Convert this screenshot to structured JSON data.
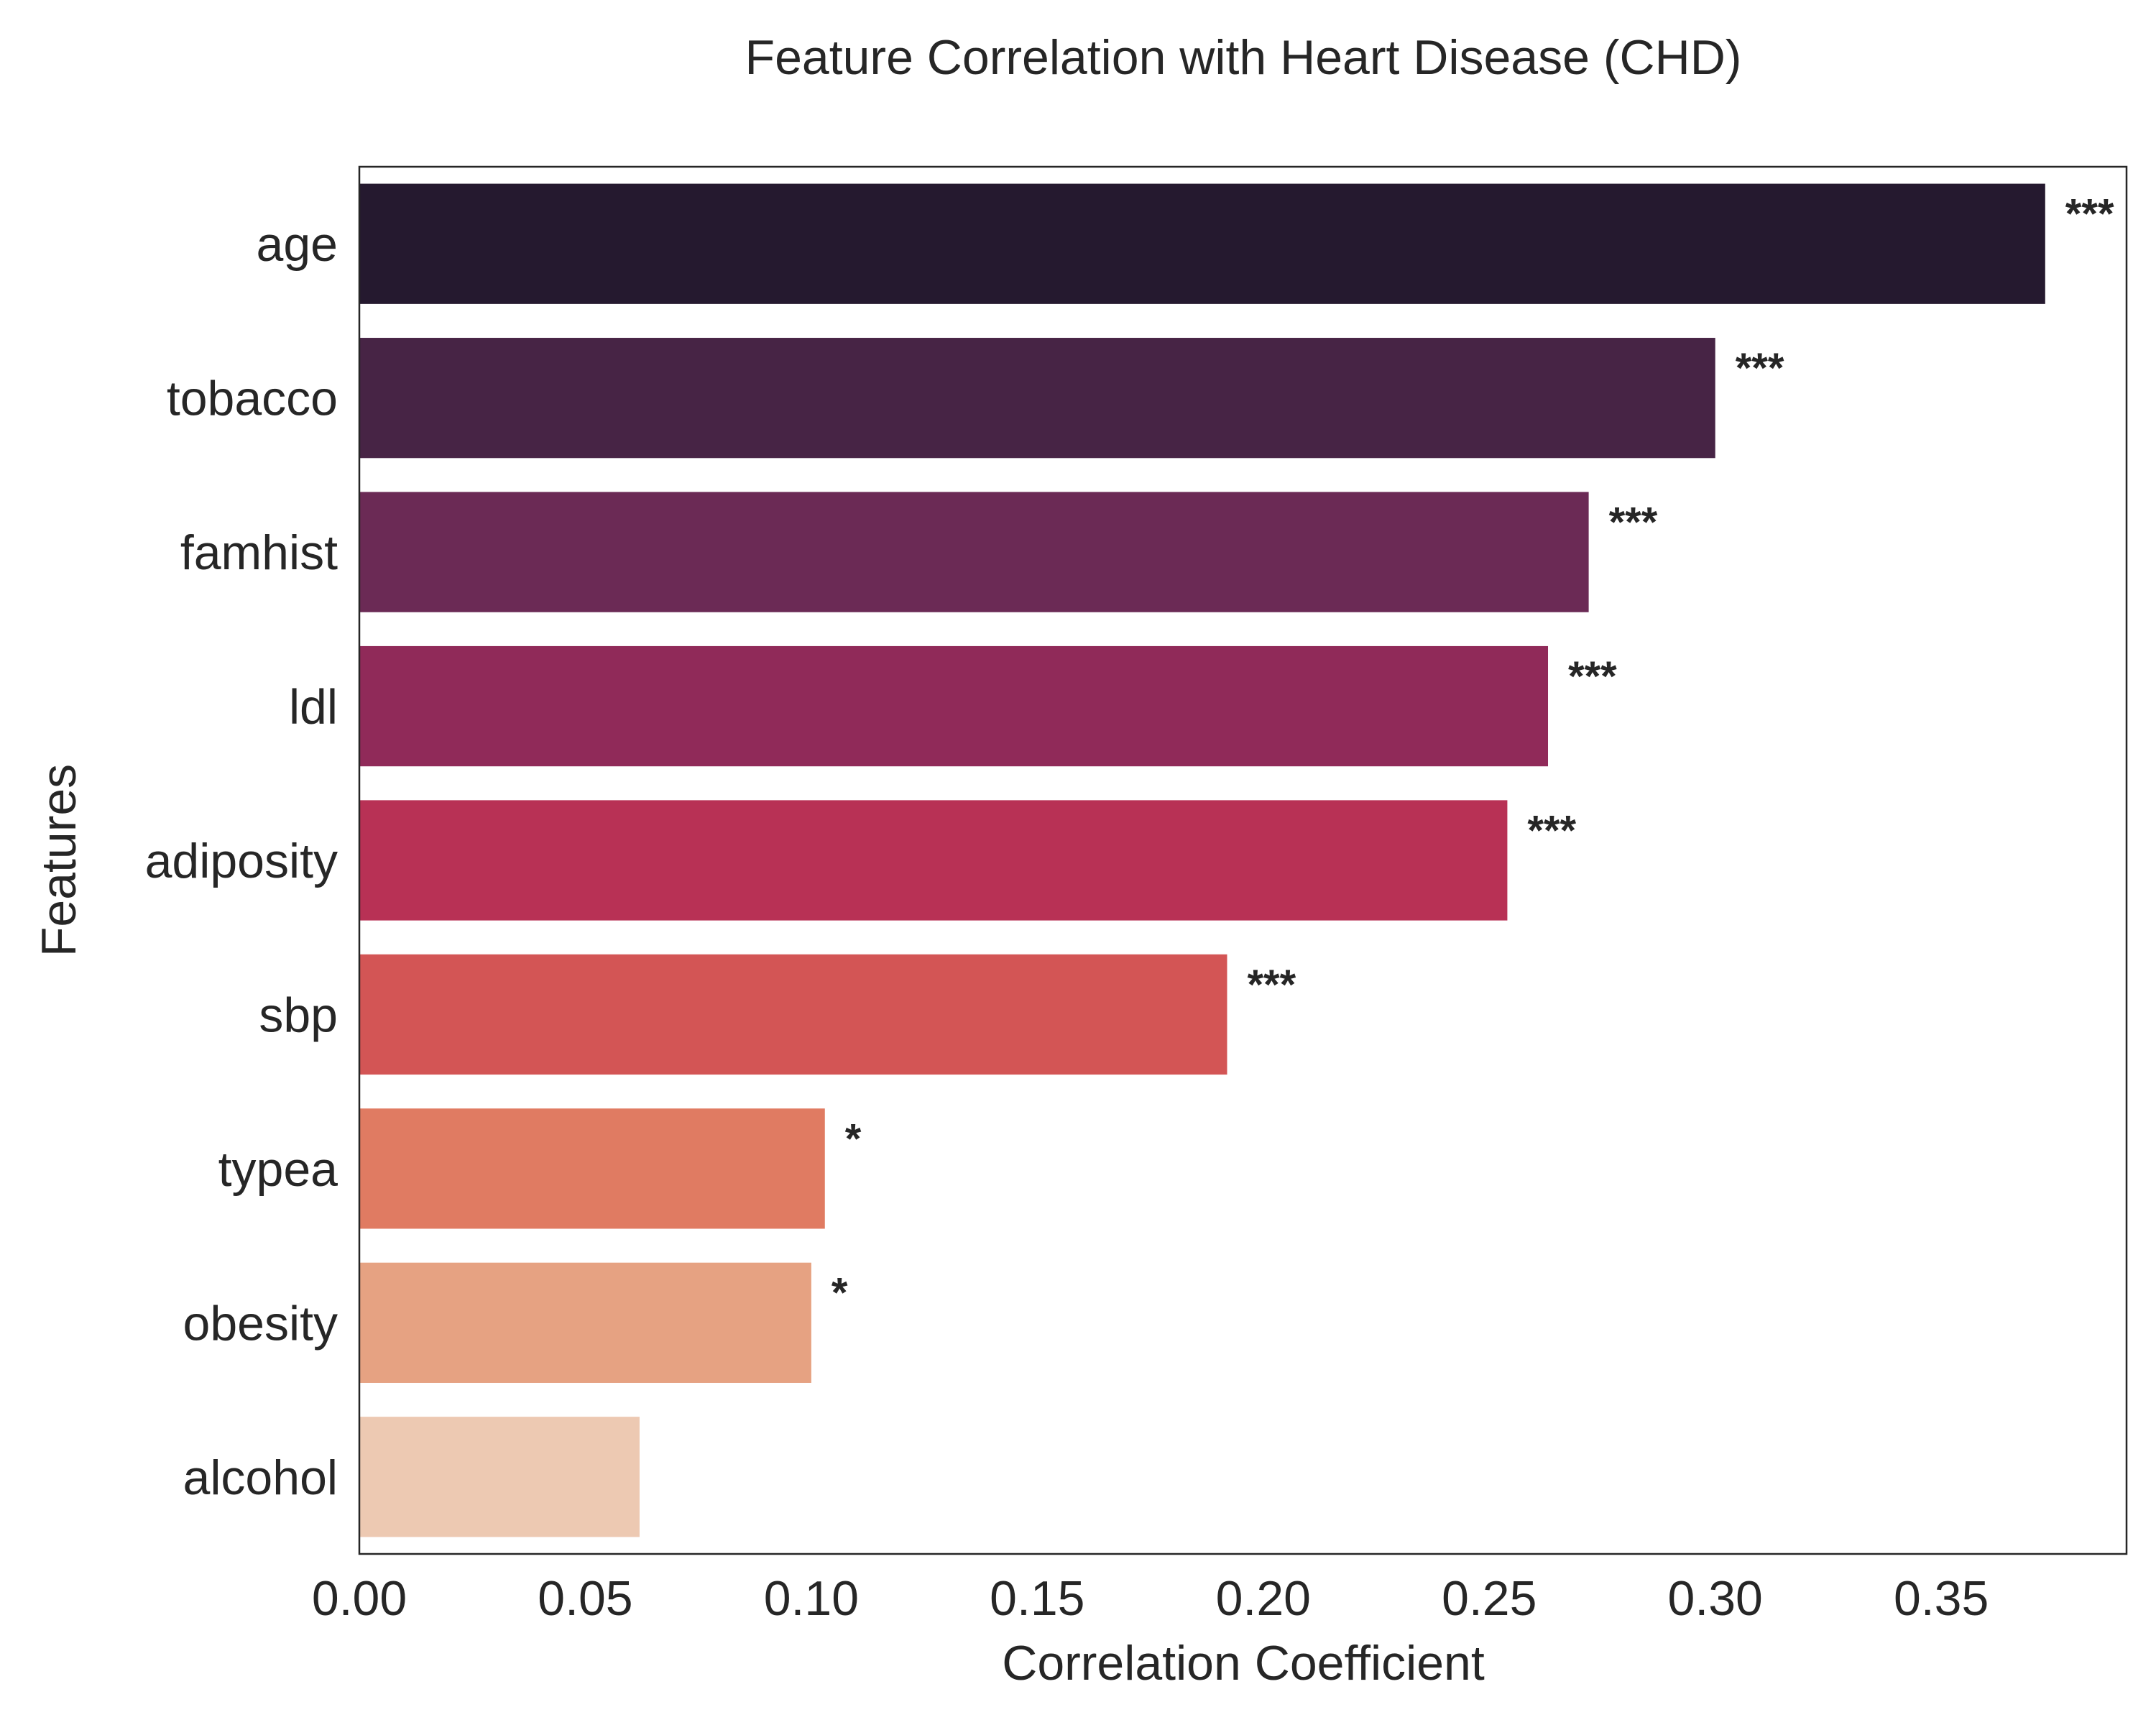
{
  "chart_data": {
    "type": "bar",
    "orientation": "horizontal",
    "title": "Feature Correlation with Heart Disease (CHD)",
    "xlabel": "Correlation Coefficient",
    "ylabel": "Features",
    "xlim": [
      0,
      0.391
    ],
    "xticks": [
      "0.00",
      "0.05",
      "0.10",
      "0.15",
      "0.20",
      "0.25",
      "0.30",
      "0.35"
    ],
    "xtick_values": [
      0,
      0.05,
      0.1,
      0.15,
      0.2,
      0.25,
      0.3,
      0.35
    ],
    "grid": false,
    "categories": [
      "age",
      "tobacco",
      "famhist",
      "ldl",
      "adiposity",
      "sbp",
      "typea",
      "obesity",
      "alcohol"
    ],
    "values": [
      0.373,
      0.3,
      0.272,
      0.263,
      0.254,
      0.192,
      0.103,
      0.1,
      0.062
    ],
    "significance": [
      "***",
      "***",
      "***",
      "***",
      "***",
      "***",
      "*",
      "*",
      ""
    ],
    "colors": [
      "#25192f",
      "#472445",
      "#6b2a55",
      "#902a59",
      "#b83155",
      "#d35555",
      "#e07b62",
      "#e6a282",
      "#edc9b2"
    ]
  }
}
